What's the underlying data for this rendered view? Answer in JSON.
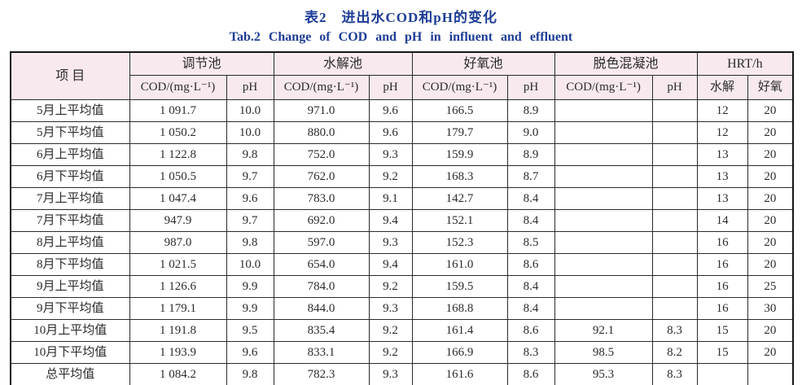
{
  "caption": {
    "chinese": "表2　进出水COD和pH的变化",
    "english": "Tab.2  Change of COD and pH in influent and effluent"
  },
  "colors": {
    "caption_text": "#1e3d96",
    "header_background": "#f8e9ef",
    "table_border": "#161616",
    "cell_text": "#2b2b2b"
  },
  "table": {
    "header": {
      "item": "项 目",
      "groups": [
        {
          "label": "调节池",
          "sub": [
            "COD/(mg·L⁻¹)",
            "pH"
          ]
        },
        {
          "label": "水解池",
          "sub": [
            "COD/(mg·L⁻¹)",
            "pH"
          ]
        },
        {
          "label": "好氧池",
          "sub": [
            "COD/(mg·L⁻¹)",
            "pH"
          ]
        },
        {
          "label": "脱色混凝池",
          "sub": [
            "COD/(mg·L⁻¹)",
            "pH"
          ]
        },
        {
          "label": "HRT/h",
          "sub": [
            "水解",
            "好氧"
          ]
        }
      ]
    },
    "rows": [
      {
        "cells": [
          "5月上平均值",
          "1 091.7",
          "10.0",
          "971.0",
          "9.6",
          "166.5",
          "8.9",
          "",
          "",
          "12",
          "20"
        ]
      },
      {
        "cells": [
          "5月下平均值",
          "1 050.2",
          "10.0",
          "880.0",
          "9.6",
          "179.7",
          "9.0",
          "",
          "",
          "12",
          "20"
        ]
      },
      {
        "cells": [
          "6月上平均值",
          "1 122.8",
          "9.8",
          "752.0",
          "9.3",
          "159.9",
          "8.9",
          "",
          "",
          "13",
          "20"
        ]
      },
      {
        "cells": [
          "6月下平均值",
          "1 050.5",
          "9.7",
          "762.0",
          "9.2",
          "168.3",
          "8.7",
          "",
          "",
          "13",
          "20"
        ]
      },
      {
        "cells": [
          "7月上平均值",
          "1 047.4",
          "9.6",
          "783.0",
          "9.1",
          "142.7",
          "8.4",
          "",
          "",
          "13",
          "20"
        ]
      },
      {
        "cells": [
          "7月下平均值",
          "947.9",
          "9.7",
          "692.0",
          "9.4",
          "152.1",
          "8.4",
          "",
          "",
          "14",
          "20"
        ]
      },
      {
        "cells": [
          "8月上平均值",
          "987.0",
          "9.8",
          "597.0",
          "9.3",
          "152.3",
          "8.5",
          "",
          "",
          "16",
          "20"
        ]
      },
      {
        "cells": [
          "8月下平均值",
          "1 021.5",
          "10.0",
          "654.0",
          "9.4",
          "161.0",
          "8.6",
          "",
          "",
          "16",
          "20"
        ]
      },
      {
        "cells": [
          "9月上平均值",
          "1 126.6",
          "9.9",
          "784.0",
          "9.2",
          "159.5",
          "8.4",
          "",
          "",
          "16",
          "25"
        ]
      },
      {
        "cells": [
          "9月下平均值",
          "1 179.1",
          "9.9",
          "844.0",
          "9.3",
          "168.8",
          "8.4",
          "",
          "",
          "16",
          "30"
        ]
      },
      {
        "cells": [
          "10月上平均值",
          "1 191.8",
          "9.5",
          "835.4",
          "9.2",
          "161.4",
          "8.6",
          "92.1",
          "8.3",
          "15",
          "20"
        ]
      },
      {
        "cells": [
          "10月下平均值",
          "1 193.9",
          "9.6",
          "833.1",
          "9.2",
          "166.9",
          "8.3",
          "98.5",
          "8.2",
          "15",
          "20"
        ]
      },
      {
        "cells": [
          "总平均值",
          "1 084.2",
          "9.8",
          "782.3",
          "9.3",
          "161.6",
          "8.6",
          "95.3",
          "8.3",
          "",
          ""
        ]
      }
    ]
  }
}
